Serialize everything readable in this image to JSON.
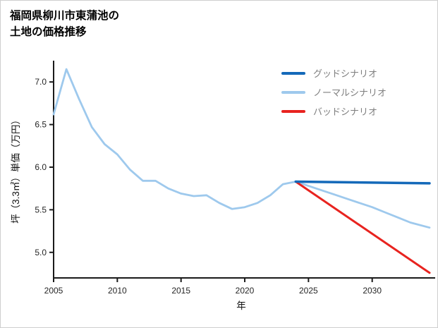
{
  "page": {
    "title_lines": [
      "福岡県柳川市東蒲池の",
      "土地の価格推移"
    ]
  },
  "chart_data": {
    "type": "line",
    "title": "福岡県柳川市東蒲池の土地の価格推移",
    "xlabel": "年",
    "ylabel": "坪（3.3㎡）単価（万円）",
    "xlim": [
      2005,
      2034.5
    ],
    "ylim": [
      4.7,
      7.25
    ],
    "xticks": [
      "2005",
      "2010",
      "2015",
      "2020",
      "2025",
      "2030"
    ],
    "yticks": [
      "5.0",
      "5.5",
      "6.0",
      "6.5",
      "7.0"
    ],
    "grid": false,
    "axis_color": "#1a1a1a",
    "legend_position": "top-right",
    "series": [
      {
        "name": "グッドシナリオ",
        "color": "#1469b9",
        "width": 3.5,
        "zorder": 3,
        "x": [
          2024,
          2034.5
        ],
        "y": [
          5.83,
          5.81
        ]
      },
      {
        "name": "ノーマルシナリオ",
        "color": "#9ec9ed",
        "width": 2.8,
        "zorder": 1,
        "x": [
          2005,
          2006,
          2007,
          2008,
          2009,
          2010,
          2011,
          2012,
          2013,
          2014,
          2015,
          2016,
          2017,
          2018,
          2019,
          2020,
          2021,
          2022,
          2023,
          2024,
          2025,
          2026,
          2027,
          2028,
          2029,
          2030,
          2031,
          2032,
          2033,
          2034.5
        ],
        "y": [
          6.62,
          7.15,
          6.8,
          6.47,
          6.27,
          6.15,
          5.97,
          5.84,
          5.84,
          5.75,
          5.69,
          5.66,
          5.67,
          5.58,
          5.51,
          5.53,
          5.58,
          5.67,
          5.8,
          5.83,
          5.78,
          5.73,
          5.68,
          5.63,
          5.58,
          5.53,
          5.47,
          5.41,
          5.35,
          5.29
        ]
      },
      {
        "name": "バッドシナリオ",
        "color": "#e8231f",
        "width": 3,
        "zorder": 2,
        "x": [
          2024,
          2034.5
        ],
        "y": [
          5.83,
          4.76
        ]
      }
    ]
  }
}
